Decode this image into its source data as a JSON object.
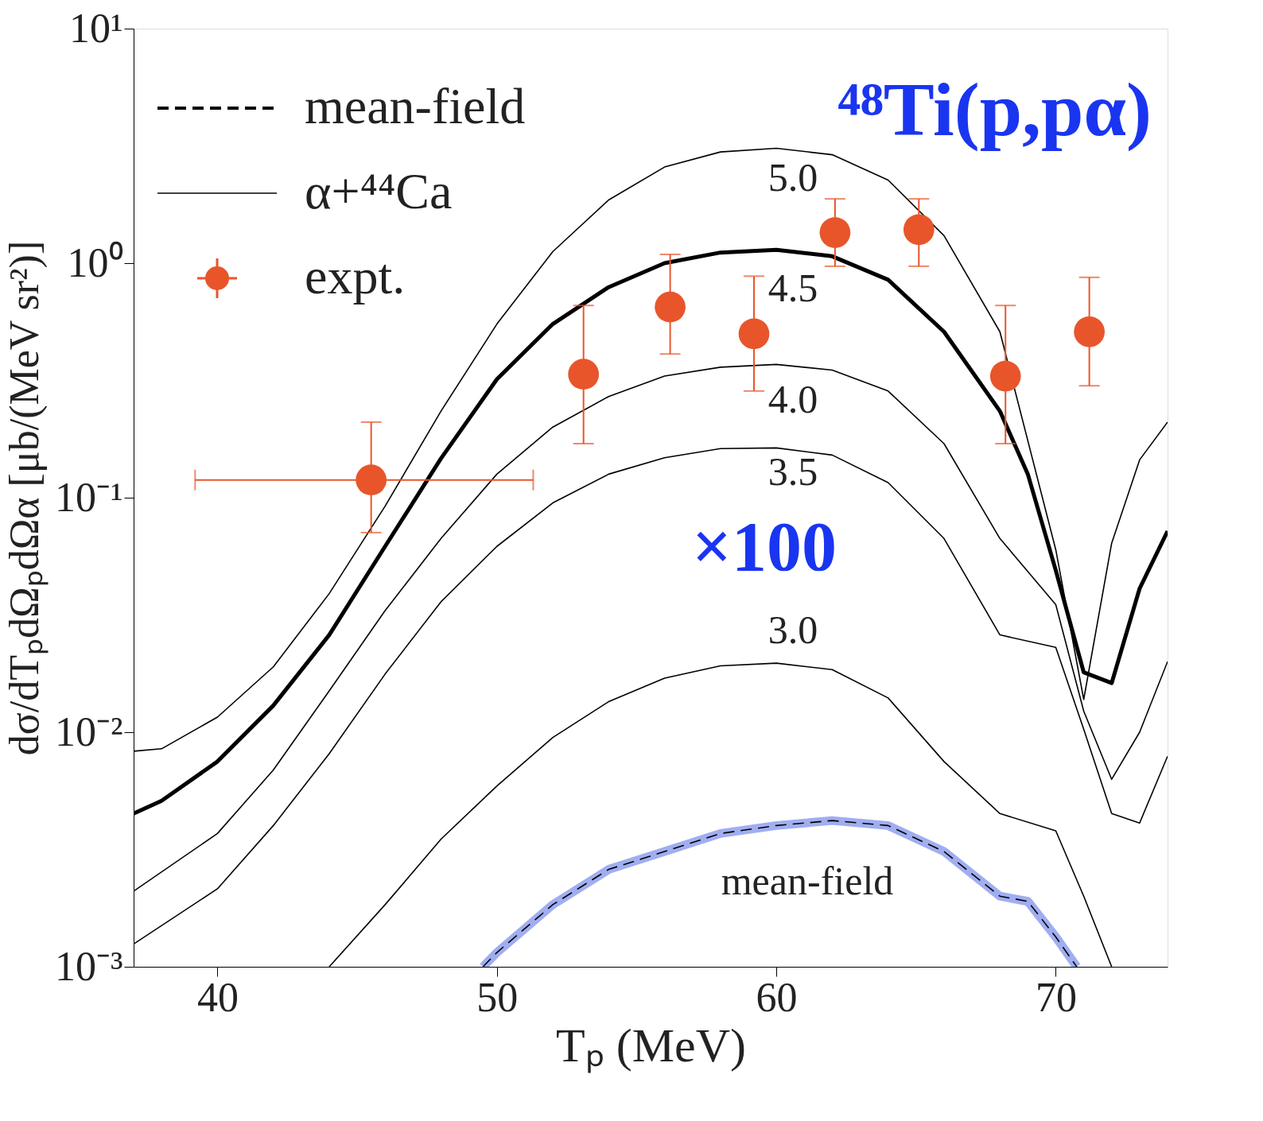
{
  "chart_data": {
    "type": "line",
    "title": "⁴⁸Ti(p,pα)",
    "xlabel": "Tₚ (MeV)",
    "ylabel": "dσ/dTₚdΩₚdΩα [μb/(MeV sr²)]",
    "xlim": [
      37,
      74
    ],
    "xticks": [
      40,
      50,
      60,
      70
    ],
    "ylim": [
      0.001,
      10
    ],
    "log": "y",
    "yticks": [
      {
        "value": 0.001,
        "label": "10⁻³"
      },
      {
        "value": 0.01,
        "label": "10⁻²"
      },
      {
        "value": 0.1,
        "label": "10⁻¹"
      },
      {
        "value": 1,
        "label": "10⁰"
      },
      {
        "value": 10,
        "label": "10¹"
      }
    ],
    "grid": false,
    "legend": "top left",
    "series": [
      {
        "color": "#8fa0ee",
        "line_style": "solid",
        "x": [
          49.5,
          50,
          52,
          54,
          56,
          58,
          60,
          62,
          64,
          66,
          68,
          69,
          70,
          70.75
        ],
        "values": [
          0.001,
          0.00115,
          0.00184,
          0.0026,
          0.0031,
          0.0037,
          0.004,
          0.0042,
          0.004,
          0.0031,
          0.002,
          0.0019,
          0.00134,
          0.001
        ]
      },
      {
        "name": "mean-field",
        "color": "#000000",
        "line_style": "dashed",
        "x": [
          49.5,
          50,
          52,
          54,
          56,
          58,
          60,
          62,
          64,
          66,
          68,
          69,
          70,
          70.75
        ],
        "values": [
          0.001,
          0.00115,
          0.00184,
          0.0026,
          0.0031,
          0.0037,
          0.004,
          0.0042,
          0.004,
          0.0031,
          0.002,
          0.0019,
          0.00134,
          0.001
        ]
      },
      {
        "name": "α+⁴⁴Ca",
        "color": "#000000",
        "line_style": "solid",
        "x": [
          37,
          38,
          40,
          42,
          44,
          46,
          48,
          50,
          52,
          54,
          56,
          58,
          60,
          62,
          64,
          66,
          68,
          70,
          71,
          72,
          73,
          74
        ],
        "values": [
          0.0083,
          0.0085,
          0.0116,
          0.019,
          0.039,
          0.092,
          0.234,
          0.55,
          1.12,
          1.86,
          2.57,
          2.98,
          3.09,
          2.9,
          2.26,
          1.31,
          0.51,
          0.06,
          0.0138,
          0.064,
          0.145,
          0.21
        ]
      },
      {
        "color": "#000000",
        "line_style": "solid",
        "x": [
          37,
          38,
          40,
          42,
          44,
          46,
          48,
          50,
          52,
          54,
          56,
          58,
          60,
          62,
          64,
          66,
          68,
          69,
          70,
          71,
          72,
          73,
          74
        ],
        "values": [
          0.0045,
          0.0051,
          0.0075,
          0.013,
          0.026,
          0.062,
          0.147,
          0.32,
          0.55,
          0.79,
          1.0,
          1.11,
          1.14,
          1.07,
          0.85,
          0.51,
          0.234,
          0.126,
          0.049,
          0.018,
          0.0162,
          0.041,
          0.072
        ]
      },
      {
        "color": "#000000",
        "line_style": "solid",
        "x": [
          37,
          40,
          42,
          44,
          46,
          48,
          50,
          52,
          54,
          56,
          58,
          60,
          62,
          64,
          66,
          68,
          70,
          71,
          72,
          73,
          74
        ],
        "values": [
          0.0021,
          0.0037,
          0.0069,
          0.015,
          0.033,
          0.067,
          0.126,
          0.2,
          0.27,
          0.33,
          0.36,
          0.37,
          0.35,
          0.285,
          0.17,
          0.067,
          0.035,
          0.0123,
          0.0063,
          0.01,
          0.02
        ]
      },
      {
        "color": "#000000",
        "line_style": "solid",
        "x": [
          37,
          40,
          42,
          44,
          46,
          48,
          50,
          52,
          54,
          56,
          58,
          60,
          62,
          64,
          66,
          68,
          70,
          71,
          72,
          73,
          74
        ],
        "values": [
          0.00125,
          0.00215,
          0.004,
          0.0081,
          0.0177,
          0.036,
          0.062,
          0.095,
          0.126,
          0.148,
          0.162,
          0.163,
          0.152,
          0.116,
          0.067,
          0.026,
          0.023,
          0.0103,
          0.0045,
          0.0041,
          0.0079
        ]
      },
      {
        "color": "#000000",
        "line_style": "solid",
        "x": [
          44,
          46,
          48,
          50,
          52,
          54,
          56,
          58,
          60,
          62,
          64,
          66,
          68,
          70,
          71,
          72
        ],
        "values": [
          0.001,
          0.00184,
          0.0035,
          0.0059,
          0.0095,
          0.0135,
          0.017,
          0.0192,
          0.0197,
          0.0185,
          0.014,
          0.0075,
          0.0045,
          0.0038,
          0.002,
          0.001
        ]
      },
      {
        "name": "expt.",
        "type": "scatter",
        "marker": "circle",
        "color": "#e8552b",
        "x": [
          45.5,
          53.1,
          56.2,
          59.2,
          62.1,
          65.1,
          68.2,
          71.2
        ],
        "values": [
          0.119,
          0.336,
          0.65,
          0.5,
          1.35,
          1.39,
          0.33,
          0.51
        ],
        "errors": [
          [
            0.071,
            0.21
          ],
          [
            0.17,
            0.66
          ],
          [
            0.41,
            1.09
          ],
          [
            0.285,
            0.88
          ],
          [
            0.97,
            1.88
          ],
          [
            0.97,
            1.88
          ],
          [
            0.17,
            0.66
          ],
          [
            0.3,
            0.87
          ]
        ],
        "xerrors": [
          [
            39.2,
            51.3
          ],
          null,
          null,
          null,
          null,
          null,
          null,
          null
        ]
      }
    ],
    "annotations": [
      "×100",
      "5.0",
      "4.5",
      "4.0",
      "3.5",
      "3.0",
      "mean-field"
    ]
  }
}
